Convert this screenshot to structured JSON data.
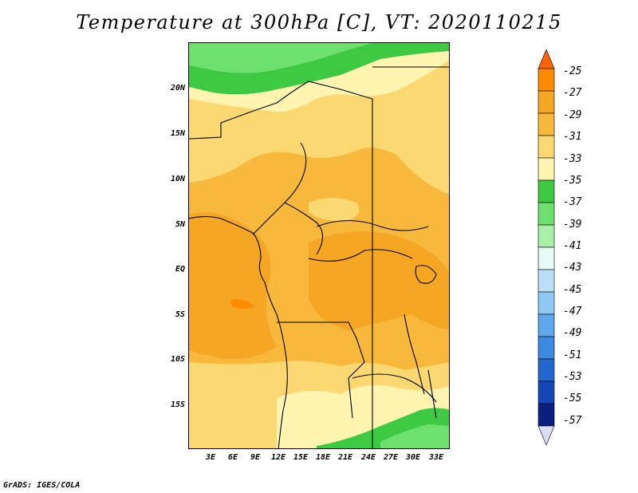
{
  "title": "Temperature at 300hPa [C], VT: 2020110215",
  "footer": "GrADS: IGES/COLA",
  "lat_labels": [
    "20N",
    "15N",
    "10N",
    "5N",
    "EQ",
    "5S",
    "10S",
    "15S"
  ],
  "lon_labels": [
    "3E",
    "6E",
    "9E",
    "12E",
    "15E",
    "18E",
    "21E",
    "24E",
    "27E",
    "30E",
    "33E"
  ],
  "colorbar": {
    "labels": [
      "-25",
      "-27",
      "-29",
      "-31",
      "-33",
      "-35",
      "-37",
      "-39",
      "-41",
      "-43",
      "-45",
      "-47",
      "-49",
      "-51",
      "-53",
      "-55",
      "-57"
    ],
    "colors": [
      "#ff6400",
      "#ff8c00",
      "#f5a623",
      "#f7b83c",
      "#fcd873",
      "#fff4b0",
      "#3ec943",
      "#6ee06e",
      "#a8f0a8",
      "#e6fbf5",
      "#b9e0f7",
      "#8fc8f2",
      "#5fa8ec",
      "#3c8ae0",
      "#2266d0",
      "#1446b8",
      "#0a1f80",
      "#d8ddf5"
    ]
  },
  "palette": {
    "t_m31_m29": "#f7b83c",
    "t_m29_m27": "#f5a623",
    "t_m33_m31": "#fcd873",
    "t_m35_m33": "#fff4b0",
    "t_m37_m35": "#3ec943",
    "t_m39_m37": "#6ee06e"
  }
}
